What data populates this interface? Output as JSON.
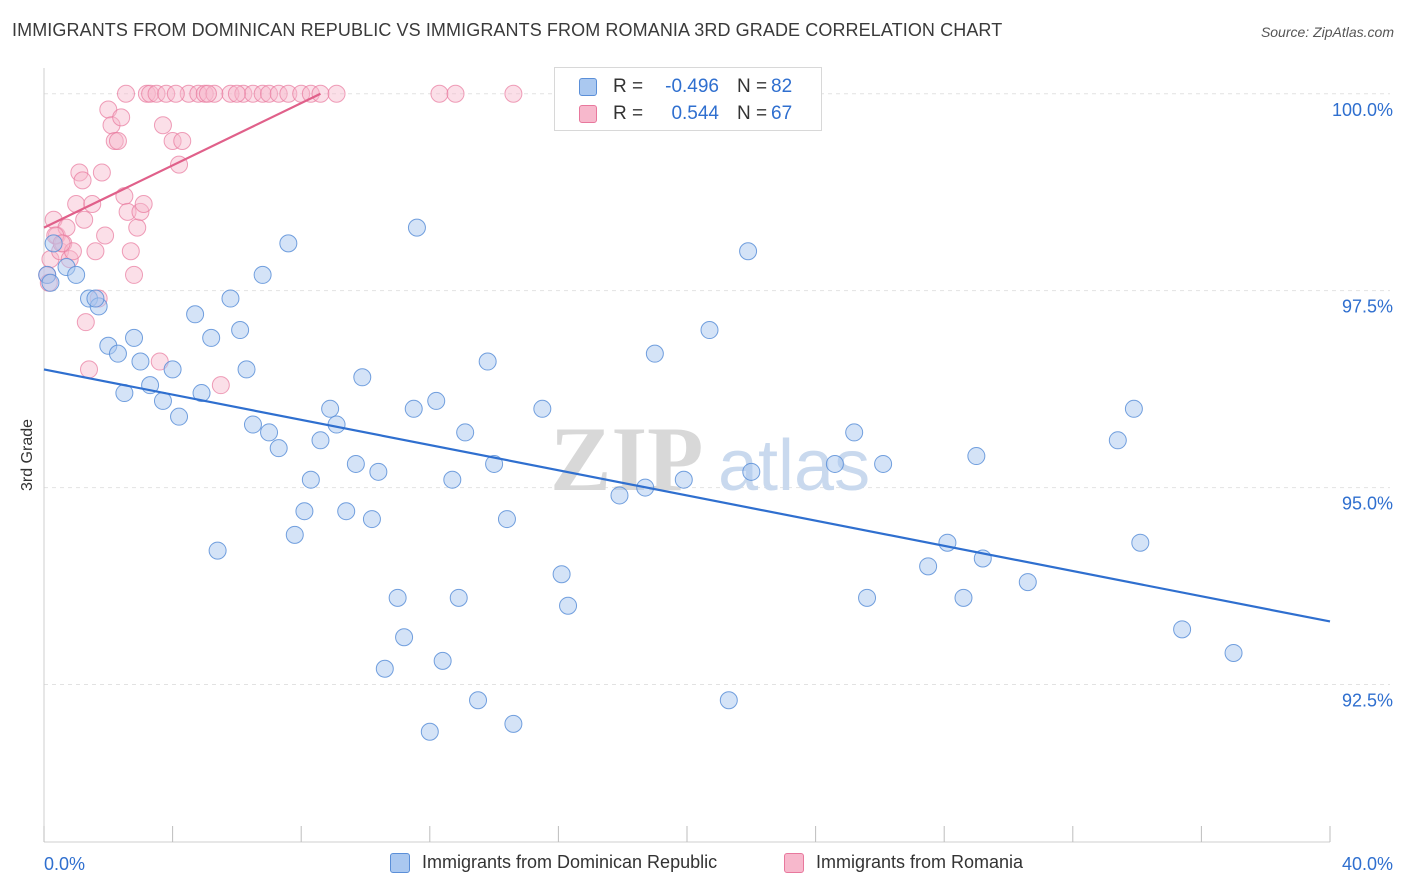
{
  "header": {
    "title": "IMMIGRANTS FROM DOMINICAN REPUBLIC VS IMMIGRANTS FROM ROMANIA 3RD GRADE CORRELATION CHART",
    "source": "Source: ZipAtlas.com"
  },
  "watermark": {
    "zip": "ZIP",
    "atlas": "atlas"
  },
  "legend": {
    "rows": [
      {
        "r_label": "R =",
        "r_value": "-0.496",
        "n_label": "N =",
        "n_value": "82"
      },
      {
        "r_label": "R =",
        "r_value": "0.544",
        "n_label": "N =",
        "n_value": "67"
      }
    ]
  },
  "colors": {
    "blue_fill": "#aac8f0",
    "blue_stroke": "#5b8fd8",
    "blue_line": "#2f6fcf",
    "pink_fill": "#f7b8cc",
    "pink_stroke": "#e8789d",
    "pink_line": "#e0608a",
    "axis_text": "#2f6fcf",
    "grid": "#e2e2e2"
  },
  "chart_data": {
    "type": "scatter",
    "title": "IMMIGRANTS FROM DOMINICAN REPUBLIC VS IMMIGRANTS FROM ROMANIA 3RD GRADE CORRELATION CHART",
    "xlabel": "",
    "ylabel": "3rd Grade",
    "xlim": [
      0,
      40
    ],
    "ylim": [
      90.5,
      100.2
    ],
    "x_tick_labels": [
      "0.0%",
      "40.0%"
    ],
    "y_ticks": [
      92.5,
      95.0,
      97.5,
      100.0
    ],
    "y_tick_labels": [
      "92.5%",
      "95.0%",
      "97.5%",
      "100.0%"
    ],
    "grid": true,
    "legend_position": "top-center",
    "series": [
      {
        "name": "Immigrants from Dominican Republic",
        "r": -0.496,
        "n": 82,
        "trend": {
          "x": [
            0,
            40
          ],
          "y": [
            96.5,
            93.3
          ]
        },
        "points": [
          [
            0.1,
            97.7
          ],
          [
            0.3,
            98.1
          ],
          [
            0.7,
            97.8
          ],
          [
            1.0,
            97.7
          ],
          [
            1.4,
            97.4
          ],
          [
            1.7,
            97.3
          ],
          [
            2.0,
            96.8
          ],
          [
            2.3,
            96.7
          ],
          [
            2.5,
            96.2
          ],
          [
            2.8,
            96.9
          ],
          [
            3.0,
            96.6
          ],
          [
            3.3,
            96.3
          ],
          [
            3.7,
            96.1
          ],
          [
            4.0,
            96.5
          ],
          [
            4.2,
            95.9
          ],
          [
            4.7,
            97.2
          ],
          [
            4.9,
            96.2
          ],
          [
            5.2,
            96.9
          ],
          [
            5.4,
            94.2
          ],
          [
            5.8,
            97.4
          ],
          [
            6.1,
            97.0
          ],
          [
            6.3,
            96.5
          ],
          [
            6.5,
            95.8
          ],
          [
            6.8,
            97.7
          ],
          [
            7.0,
            95.7
          ],
          [
            7.3,
            95.5
          ],
          [
            7.6,
            98.1
          ],
          [
            7.8,
            94.4
          ],
          [
            8.1,
            94.7
          ],
          [
            8.3,
            95.1
          ],
          [
            8.6,
            95.6
          ],
          [
            8.9,
            96.0
          ],
          [
            9.1,
            95.8
          ],
          [
            9.4,
            94.7
          ],
          [
            9.7,
            95.3
          ],
          [
            9.9,
            96.4
          ],
          [
            10.2,
            94.6
          ],
          [
            10.4,
            95.2
          ],
          [
            10.6,
            92.7
          ],
          [
            11.0,
            93.6
          ],
          [
            11.2,
            93.1
          ],
          [
            11.5,
            96.0
          ],
          [
            11.6,
            98.3
          ],
          [
            12.0,
            91.9
          ],
          [
            12.2,
            96.1
          ],
          [
            12.4,
            92.8
          ],
          [
            12.7,
            95.1
          ],
          [
            12.9,
            93.6
          ],
          [
            13.1,
            95.7
          ],
          [
            13.5,
            92.3
          ],
          [
            13.8,
            96.6
          ],
          [
            14.0,
            95.3
          ],
          [
            14.4,
            94.6
          ],
          [
            14.6,
            92.0
          ],
          [
            15.5,
            96.0
          ],
          [
            16.1,
            93.9
          ],
          [
            16.3,
            93.5
          ],
          [
            17.9,
            94.9
          ],
          [
            18.7,
            95.0
          ],
          [
            19.0,
            96.7
          ],
          [
            19.9,
            95.1
          ],
          [
            20.7,
            97.0
          ],
          [
            21.3,
            92.3
          ],
          [
            21.9,
            98.0
          ],
          [
            22.0,
            95.2
          ],
          [
            24.6,
            95.3
          ],
          [
            25.2,
            95.7
          ],
          [
            25.6,
            93.6
          ],
          [
            26.1,
            95.3
          ],
          [
            27.5,
            94.0
          ],
          [
            28.1,
            94.3
          ],
          [
            28.6,
            93.6
          ],
          [
            29.0,
            95.4
          ],
          [
            29.2,
            94.1
          ],
          [
            30.6,
            93.8
          ],
          [
            33.4,
            95.6
          ],
          [
            33.9,
            96.0
          ],
          [
            34.1,
            94.3
          ],
          [
            35.4,
            93.2
          ],
          [
            37.0,
            92.9
          ],
          [
            0.2,
            97.6
          ],
          [
            1.6,
            97.4
          ]
        ]
      },
      {
        "name": "Immigrants from Romania",
        "r": 0.544,
        "n": 67,
        "trend": {
          "x": [
            0,
            8.6
          ],
          "y": [
            98.3,
            100.0
          ]
        },
        "points": [
          [
            0.1,
            97.7
          ],
          [
            0.2,
            97.9
          ],
          [
            0.3,
            98.4
          ],
          [
            0.4,
            98.2
          ],
          [
            0.5,
            98.0
          ],
          [
            0.6,
            98.1
          ],
          [
            0.7,
            98.3
          ],
          [
            0.8,
            97.9
          ],
          [
            0.9,
            98.0
          ],
          [
            1.0,
            98.6
          ],
          [
            1.1,
            99.0
          ],
          [
            1.2,
            98.9
          ],
          [
            1.3,
            97.1
          ],
          [
            1.4,
            96.5
          ],
          [
            1.5,
            98.6
          ],
          [
            1.6,
            98.0
          ],
          [
            1.7,
            97.4
          ],
          [
            1.8,
            99.0
          ],
          [
            1.9,
            98.2
          ],
          [
            2.0,
            99.8
          ],
          [
            2.1,
            99.6
          ],
          [
            2.2,
            99.4
          ],
          [
            2.3,
            99.4
          ],
          [
            2.4,
            99.7
          ],
          [
            2.5,
            98.7
          ],
          [
            2.6,
            98.5
          ],
          [
            2.7,
            98.0
          ],
          [
            2.8,
            97.7
          ],
          [
            2.9,
            98.3
          ],
          [
            3.0,
            98.5
          ],
          [
            3.1,
            98.6
          ],
          [
            3.2,
            100.0
          ],
          [
            3.3,
            100.0
          ],
          [
            3.5,
            100.0
          ],
          [
            3.6,
            96.6
          ],
          [
            3.7,
            99.6
          ],
          [
            3.8,
            100.0
          ],
          [
            4.0,
            99.4
          ],
          [
            4.2,
            99.1
          ],
          [
            4.3,
            99.4
          ],
          [
            4.5,
            100.0
          ],
          [
            4.8,
            100.0
          ],
          [
            5.0,
            100.0
          ],
          [
            5.3,
            100.0
          ],
          [
            5.5,
            96.3
          ],
          [
            5.8,
            100.0
          ],
          [
            6.2,
            100.0
          ],
          [
            6.5,
            100.0
          ],
          [
            6.8,
            100.0
          ],
          [
            7.0,
            100.0
          ],
          [
            7.3,
            100.0
          ],
          [
            7.6,
            100.0
          ],
          [
            8.0,
            100.0
          ],
          [
            8.3,
            100.0
          ],
          [
            8.6,
            100.0
          ],
          [
            9.1,
            100.0
          ],
          [
            12.3,
            100.0
          ],
          [
            12.8,
            100.0
          ],
          [
            14.6,
            100.0
          ],
          [
            0.15,
            97.6
          ],
          [
            0.35,
            98.2
          ],
          [
            0.55,
            98.1
          ],
          [
            1.25,
            98.4
          ],
          [
            2.55,
            100.0
          ],
          [
            4.1,
            100.0
          ],
          [
            5.1,
            100.0
          ],
          [
            6.0,
            100.0
          ]
        ]
      }
    ]
  },
  "bottom_legend": [
    {
      "label": "Immigrants from Dominican Republic"
    },
    {
      "label": "Immigrants from Romania"
    }
  ]
}
